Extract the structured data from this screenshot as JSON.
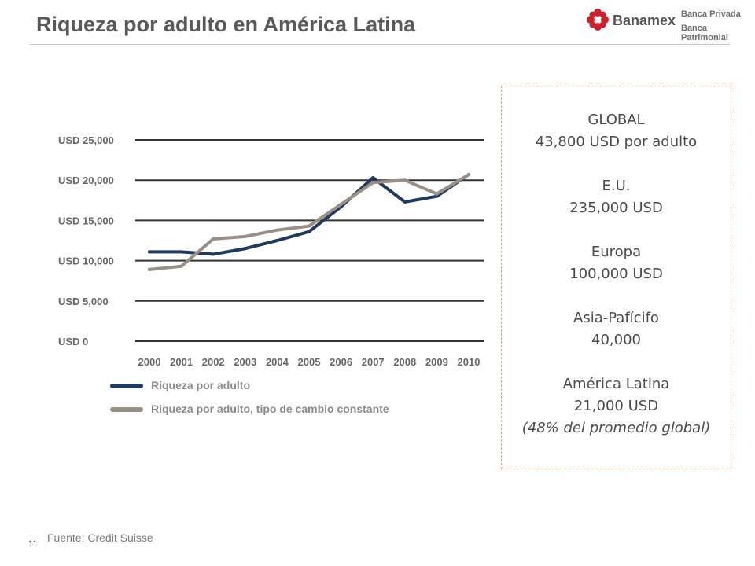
{
  "slide": {
    "title": "Riqueza por adulto en América Latina",
    "source": "Fuente: Credit Suisse",
    "page_number": "11"
  },
  "logo": {
    "brand": "Banamex",
    "line1": "Banca Privada",
    "line2": "Banca Patrimonial",
    "mark_icon": "banamex-flower-icon",
    "mark_color": "#d0202e"
  },
  "chart_data": {
    "type": "line",
    "x": [
      "2000",
      "2001",
      "2002",
      "2003",
      "2004",
      "2005",
      "2006",
      "2007",
      "2008",
      "2009",
      "2010"
    ],
    "y_tick_labels": [
      "USD 0",
      "USD 5,000",
      "USD 10,000",
      "USD 15,000",
      "USD 20,000",
      "USD 25,000"
    ],
    "y_ticks": [
      0,
      5000,
      10000,
      15000,
      20000,
      25000
    ],
    "ylim": [
      0,
      25000
    ],
    "grid": true,
    "legend_position": "bottom",
    "series": [
      {
        "name": "Riqueza por adulto",
        "color": "#1f3a5f",
        "values": [
          11100,
          11100,
          10800,
          11500,
          12500,
          13600,
          16700,
          20300,
          17300,
          18000,
          20700
        ]
      },
      {
        "name": "Riqueza por adulto, tipo de cambio constante",
        "color": "#9a8f86",
        "values": [
          8900,
          9300,
          12700,
          13000,
          13800,
          14300,
          17000,
          19700,
          20000,
          18300,
          20700
        ]
      }
    ]
  },
  "info_box": {
    "border_color": "#e8a36c",
    "blocks": [
      {
        "label": "GLOBAL",
        "value": "43,800 USD por adulto"
      },
      {
        "label": "E.U.",
        "value": "235,000 USD"
      },
      {
        "label": "Europa",
        "value": "100,000 USD"
      },
      {
        "label": "Asia-Pafícifo",
        "value": "40,000"
      },
      {
        "label": "América Latina",
        "value": "21,000 USD",
        "note": "(48% del promedio global)"
      }
    ]
  }
}
